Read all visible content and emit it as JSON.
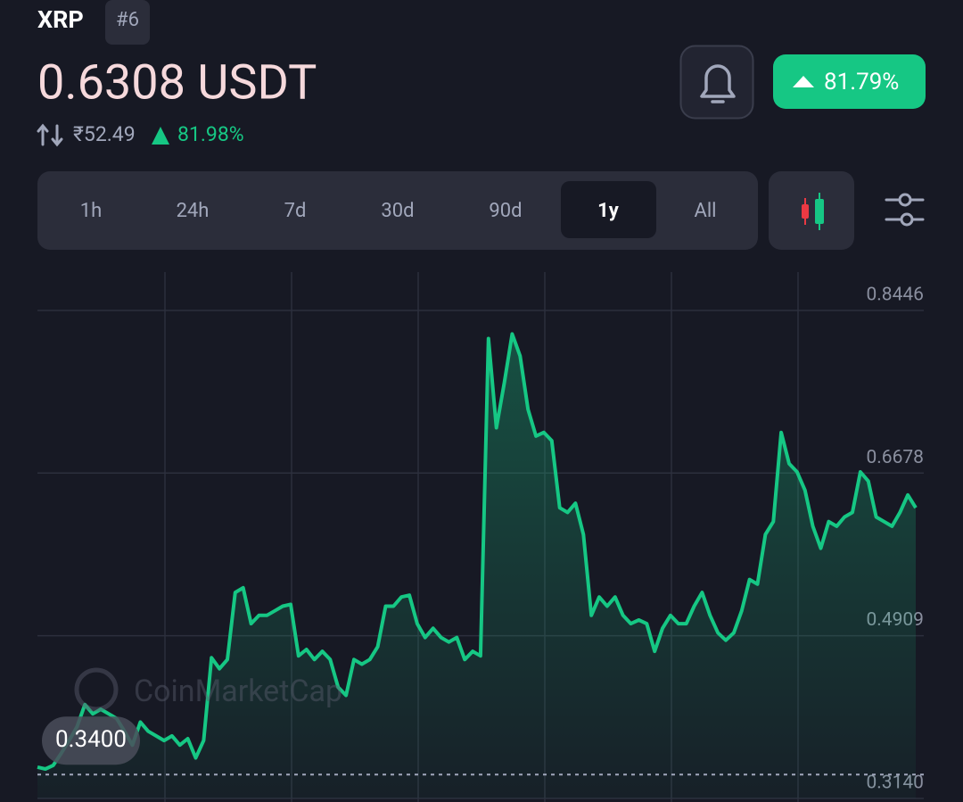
{
  "header": {
    "symbol": "XRP",
    "rank": "#6",
    "price": "0.6308 USDT",
    "inr_price": "₹52.49",
    "inr_change": "81.98%",
    "change_badge": "81.79%"
  },
  "tabs": [
    "1h",
    "24h",
    "7d",
    "30d",
    "90d",
    "1y",
    "All"
  ],
  "watermark": "CoinMarketCap",
  "chart_data": {
    "type": "line",
    "color": "#16c784",
    "values": [
      0.348,
      0.346,
      0.35,
      0.363,
      0.377,
      0.392,
      0.416,
      0.406,
      0.411,
      0.406,
      0.401,
      0.387,
      0.372,
      0.397,
      0.387,
      0.382,
      0.377,
      0.382,
      0.372,
      0.379,
      0.358,
      0.377,
      0.467,
      0.455,
      0.465,
      0.538,
      0.543,
      0.504,
      0.513,
      0.513,
      0.518,
      0.523,
      0.525,
      0.469,
      0.476,
      0.465,
      0.474,
      0.465,
      0.435,
      0.426,
      0.465,
      0.46,
      0.465,
      0.479,
      0.523,
      0.523,
      0.533,
      0.535,
      0.504,
      0.489,
      0.499,
      0.489,
      0.484,
      0.489,
      0.465,
      0.474,
      0.469,
      0.814,
      0.717,
      0.766,
      0.819,
      0.795,
      0.737,
      0.708,
      0.712,
      0.703,
      0.63,
      0.625,
      0.635,
      0.601,
      0.513,
      0.533,
      0.523,
      0.533,
      0.513,
      0.504,
      0.508,
      0.504,
      0.474,
      0.499,
      0.513,
      0.504,
      0.504,
      0.523,
      0.538,
      0.513,
      0.494,
      0.486,
      0.494,
      0.518,
      0.552,
      0.547,
      0.601,
      0.615,
      0.712,
      0.678,
      0.669,
      0.649,
      0.61,
      0.586,
      0.615,
      0.61,
      0.62,
      0.625,
      0.669,
      0.659,
      0.62,
      0.615,
      0.61,
      0.625,
      0.644,
      0.63
    ],
    "ylim": [
      0.314,
      0.8446
    ],
    "yticks": [
      {
        "value": 0.314,
        "label": "0.3140"
      },
      0.4909,
      0.6678,
      0.8446
    ],
    "grid": true,
    "reference_line": {
      "value": 0.34,
      "label": "0.3400"
    }
  }
}
